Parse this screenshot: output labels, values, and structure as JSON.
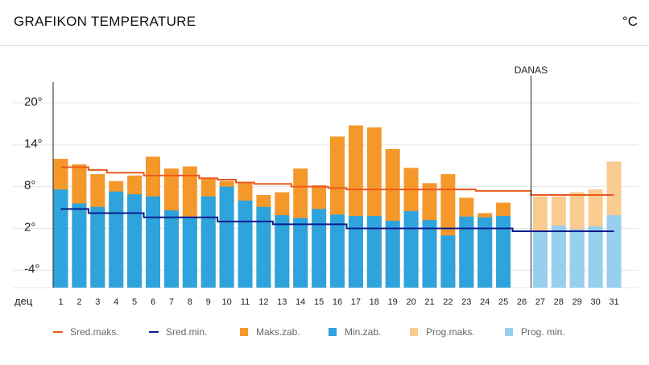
{
  "header": {
    "title": "GRAFIKON TEMPERATURE",
    "unit": "°C"
  },
  "colors": {
    "avg_max": "#ea5a1f",
    "avg_min": "#0b1d8f",
    "max": "#f5982a",
    "min": "#2fa3dc",
    "forecast_max": "#f9cb90",
    "forecast_min": "#97cfee",
    "grid": "#e6e6e6",
    "today_line": "#222222"
  },
  "chart_data": {
    "type": "bar",
    "x_axis_label": "дец",
    "today_label": "DANAS",
    "today_after_day": 26,
    "y_ticks": [
      "20°",
      "14°",
      "8°",
      "2°",
      "-4°"
    ],
    "y_tick_values": [
      20,
      14,
      8,
      2,
      -4
    ],
    "ylim": [
      -6.5,
      23
    ],
    "days": [
      "1",
      "2",
      "3",
      "4",
      "5",
      "6",
      "7",
      "8",
      "9",
      "10",
      "11",
      "12",
      "13",
      "14",
      "15",
      "16",
      "17",
      "18",
      "19",
      "20",
      "21",
      "22",
      "23",
      "24",
      "25",
      "26",
      "27",
      "28",
      "29",
      "30",
      "31"
    ],
    "series": [
      {
        "name": "Maks.zab.",
        "kind": "bar",
        "values": [
          12,
          11.2,
          9.8,
          8.8,
          9.6,
          12.3,
          10.6,
          10.9,
          9.3,
          8.8,
          8.6,
          6.8,
          7.2,
          10.6,
          8.2,
          15.2,
          16.8,
          16.5,
          13.4,
          10.7,
          8.5,
          9.8,
          6.4,
          4.2,
          5.7,
          null,
          null,
          null,
          null,
          null,
          null
        ]
      },
      {
        "name": "Min.zab.",
        "kind": "bar",
        "values": [
          7.6,
          5.6,
          5.1,
          7.3,
          6.9,
          6.6,
          4.6,
          3.6,
          6.6,
          8.0,
          6.0,
          5.1,
          3.9,
          3.5,
          4.8,
          4.0,
          3.8,
          3.8,
          3.1,
          4.5,
          3.2,
          1.0,
          3.7,
          3.6,
          3.8,
          null,
          null,
          null,
          null,
          null,
          null
        ]
      },
      {
        "name": "Prog.maks.",
        "kind": "bar",
        "values": [
          null,
          null,
          null,
          null,
          null,
          null,
          null,
          null,
          null,
          null,
          null,
          null,
          null,
          null,
          null,
          null,
          null,
          null,
          null,
          null,
          null,
          null,
          null,
          null,
          null,
          null,
          6.6,
          6.6,
          7.2,
          7.6,
          11.6
        ]
      },
      {
        "name": "Prog. min.",
        "kind": "bar",
        "values": [
          null,
          null,
          null,
          null,
          null,
          null,
          null,
          null,
          null,
          null,
          null,
          null,
          null,
          null,
          null,
          null,
          null,
          null,
          null,
          null,
          null,
          null,
          null,
          null,
          null,
          null,
          1.5,
          2.4,
          1.9,
          2.3,
          3.9
        ]
      },
      {
        "name": "Sred.maks.",
        "kind": "line",
        "values": [
          10.8,
          10.8,
          10.4,
          10.0,
          10.0,
          9.6,
          9.6,
          9.6,
          9.2,
          9.0,
          8.6,
          8.4,
          8.4,
          8.0,
          8.0,
          7.8,
          7.6,
          7.6,
          7.6,
          7.6,
          7.6,
          7.6,
          7.6,
          7.4,
          7.4,
          7.4,
          6.8,
          6.8,
          6.8,
          6.8,
          6.8
        ]
      },
      {
        "name": "Sred.min.",
        "kind": "line",
        "values": [
          4.8,
          4.8,
          4.2,
          4.2,
          4.2,
          3.6,
          3.6,
          3.6,
          3.6,
          3.0,
          3.0,
          3.0,
          2.6,
          2.6,
          2.6,
          2.6,
          2.0,
          2.0,
          2.0,
          2.0,
          2.0,
          2.0,
          2.0,
          2.0,
          2.0,
          1.6,
          1.6,
          1.6,
          1.6,
          1.6,
          1.6
        ]
      }
    ],
    "legend": [
      {
        "label": "Sred.maks.",
        "shape": "line",
        "color_key": "avg_max"
      },
      {
        "label": "Sred.min.",
        "shape": "line",
        "color_key": "avg_min"
      },
      {
        "label": "Maks.zab.",
        "shape": "square",
        "color_key": "max"
      },
      {
        "label": "Min.zab.",
        "shape": "square",
        "color_key": "min"
      },
      {
        "label": "Prog.maks.",
        "shape": "square",
        "color_key": "forecast_max"
      },
      {
        "label": "Prog. min.",
        "shape": "square",
        "color_key": "forecast_min"
      }
    ],
    "grid": true,
    "legend_position": "bottom"
  }
}
